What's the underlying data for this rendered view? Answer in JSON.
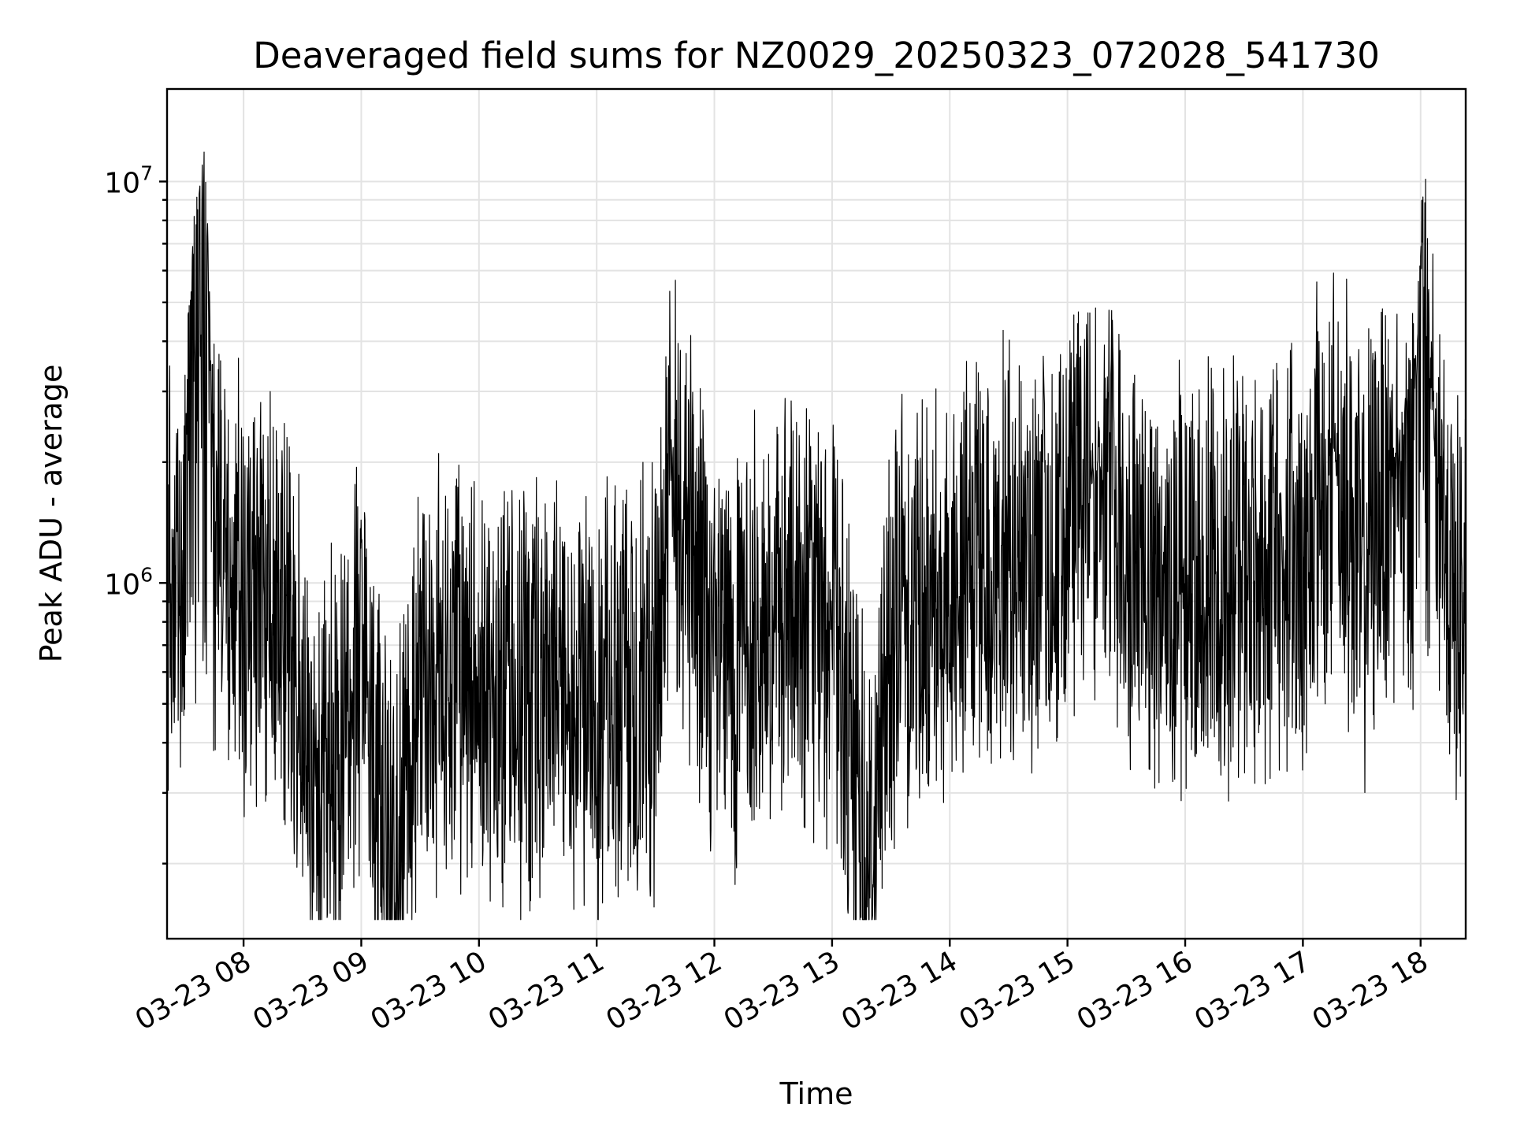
{
  "chart_data": {
    "type": "line",
    "title": "Deaveraged field sums for NZ0029_20250323_072028_541730",
    "xlabel": "Time",
    "ylabel": "Peak ADU - average",
    "x_axis": {
      "kind": "datetime",
      "range": [
        "2025-03-23 07:21",
        "2025-03-23 18:23"
      ],
      "ticks": [
        {
          "value": "2025-03-23 08:00",
          "label": "03-23 08"
        },
        {
          "value": "2025-03-23 09:00",
          "label": "03-23 09"
        },
        {
          "value": "2025-03-23 10:00",
          "label": "03-23 10"
        },
        {
          "value": "2025-03-23 11:00",
          "label": "03-23 11"
        },
        {
          "value": "2025-03-23 12:00",
          "label": "03-23 12"
        },
        {
          "value": "2025-03-23 13:00",
          "label": "03-23 13"
        },
        {
          "value": "2025-03-23 14:00",
          "label": "03-23 14"
        },
        {
          "value": "2025-03-23 15:00",
          "label": "03-23 15"
        },
        {
          "value": "2025-03-23 16:00",
          "label": "03-23 16"
        },
        {
          "value": "2025-03-23 17:00",
          "label": "03-23 17"
        },
        {
          "value": "2025-03-23 18:00",
          "label": "03-23 18"
        }
      ]
    },
    "y_axis": {
      "scale": "log",
      "range": [
        130000,
        17000000
      ],
      "major_ticks": [
        {
          "value": 1000000,
          "base": "10",
          "exp": "6"
        },
        {
          "value": 10000000,
          "base": "10",
          "exp": "7"
        }
      ]
    },
    "grid": true,
    "line_color": "#000000",
    "series": [
      {
        "points": [
          {
            "t": "2025-03-23 07:21",
            "y": 900000
          },
          {
            "t": "2025-03-23 07:30",
            "y": 1200000
          },
          {
            "t": "2025-03-23 07:31",
            "y": 4200000
          },
          {
            "t": "2025-03-23 07:33",
            "y": 6200000
          },
          {
            "t": "2025-03-23 07:36",
            "y": 10000000
          },
          {
            "t": "2025-03-23 07:41",
            "y": 12500000
          },
          {
            "t": "2025-03-23 07:45",
            "y": 1300000
          },
          {
            "t": "2025-03-23 08:00",
            "y": 900000
          },
          {
            "t": "2025-03-23 08:30",
            "y": 700000
          },
          {
            "t": "2025-03-23 08:34",
            "y": 230000
          },
          {
            "t": "2025-03-23 09:00",
            "y": 650000
          },
          {
            "t": "2025-03-23 09:16",
            "y": 190000
          },
          {
            "t": "2025-03-23 09:30",
            "y": 600000
          },
          {
            "t": "2025-03-23 10:00",
            "y": 550000
          },
          {
            "t": "2025-03-23 10:30",
            "y": 520000
          },
          {
            "t": "2025-03-23 11:00",
            "y": 520000
          },
          {
            "t": "2025-03-23 11:30",
            "y": 550000
          },
          {
            "t": "2025-03-23 11:38",
            "y": 2400000
          },
          {
            "t": "2025-03-23 12:00",
            "y": 600000
          },
          {
            "t": "2025-03-23 12:30",
            "y": 800000
          },
          {
            "t": "2025-03-23 13:00",
            "y": 800000
          },
          {
            "t": "2025-03-23 13:20",
            "y": 190000
          },
          {
            "t": "2025-03-23 13:30",
            "y": 800000
          },
          {
            "t": "2025-03-23 14:00",
            "y": 1000000
          },
          {
            "t": "2025-03-23 14:30",
            "y": 1100000
          },
          {
            "t": "2025-03-23 15:00",
            "y": 1200000
          },
          {
            "t": "2025-03-23 15:15",
            "y": 2700000
          },
          {
            "t": "2025-03-23 15:30",
            "y": 1100000
          },
          {
            "t": "2025-03-23 16:00",
            "y": 1000000
          },
          {
            "t": "2025-03-23 16:30",
            "y": 1100000
          },
          {
            "t": "2025-03-23 17:00",
            "y": 1100000
          },
          {
            "t": "2025-03-23 17:15",
            "y": 2900000
          },
          {
            "t": "2025-03-23 17:30",
            "y": 1000000
          },
          {
            "t": "2025-03-23 17:58",
            "y": 4500000
          },
          {
            "t": "2025-03-23 18:02",
            "y": 13000000
          },
          {
            "t": "2025-03-23 18:05",
            "y": 4300000
          },
          {
            "t": "2025-03-23 18:15",
            "y": 900000
          },
          {
            "t": "2025-03-23 18:23",
            "y": 900000
          }
        ]
      }
    ]
  }
}
